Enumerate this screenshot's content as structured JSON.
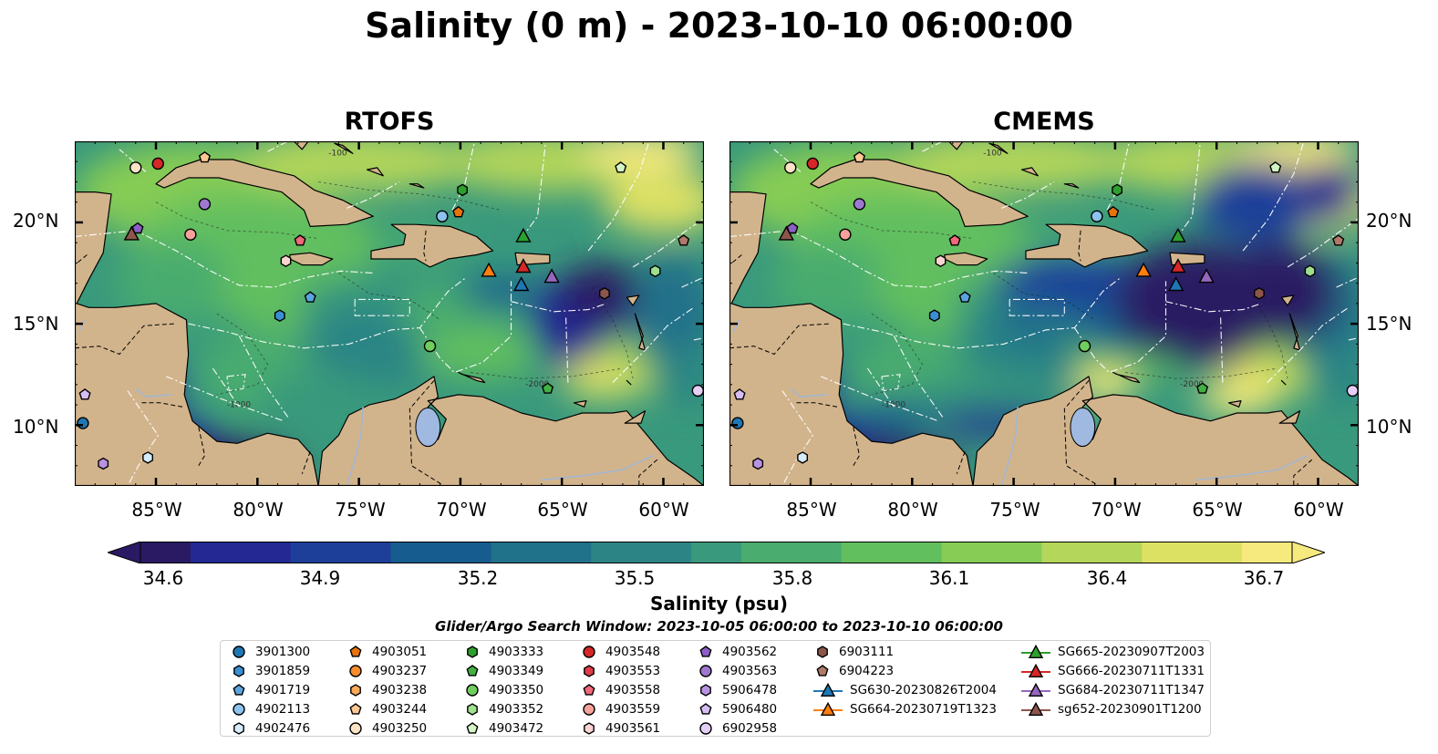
{
  "figure": {
    "suptitle": "Salinity (0 m) - 2023-10-10 06:00:00",
    "panels": [
      {
        "title": "RTOFS"
      },
      {
        "title": "CMEMS"
      }
    ],
    "lat_labels": [
      "20°N",
      "15°N",
      "10°N"
    ],
    "lon_labels": [
      "85°W",
      "80°W",
      "75°W",
      "70°W",
      "65°W",
      "60°W"
    ],
    "contour_labels": [
      "-100",
      "-1000",
      "-2000"
    ]
  },
  "map_extent": {
    "lon": [
      -89,
      -58
    ],
    "lat": [
      7,
      24
    ]
  },
  "colorbar": {
    "label": "Salinity (psu)",
    "ticks": [
      "34.6",
      "34.9",
      "35.2",
      "35.5",
      "35.8",
      "36.1",
      "36.4",
      "36.7"
    ],
    "range": [
      34.6,
      36.7
    ],
    "colormap": "haline",
    "colors": [
      "#2a1a63",
      "#232892",
      "#1d3f99",
      "#175c8f",
      "#20718a",
      "#2c8584",
      "#39997c",
      "#4aac6e",
      "#62bf5e",
      "#86cc55",
      "#b4d65a",
      "#dde163",
      "#f6ea7f"
    ]
  },
  "search_window": "Glider/Argo Search Window: 2023-10-05 06:00:00 to 2023-10-10 06:00:00",
  "colors": {
    "land": "#d2b48c",
    "lakes": "#9fb9e0",
    "rivers": "#a3b7d1",
    "eez": "#ffffff"
  },
  "legend": {
    "columns": [
      [
        {
          "label": "3901300",
          "marker": "circle",
          "color": "#1f77b4"
        },
        {
          "label": "3901859",
          "marker": "hexagon",
          "color": "#3a8fd0"
        },
        {
          "label": "4901719",
          "marker": "pentagon",
          "color": "#5aa5e0"
        },
        {
          "label": "4902113",
          "marker": "circle",
          "color": "#8cc3ee"
        },
        {
          "label": "4902476",
          "marker": "hexagon",
          "color": "#d6ecfb"
        }
      ],
      [
        {
          "label": "4903051",
          "marker": "pentagon",
          "color": "#e8720c"
        },
        {
          "label": "4903237",
          "marker": "circle",
          "color": "#f98d2c"
        },
        {
          "label": "4903238",
          "marker": "hexagon",
          "color": "#fbaa5a"
        },
        {
          "label": "4903244",
          "marker": "pentagon",
          "color": "#fdc893"
        },
        {
          "label": "4903250",
          "marker": "circle",
          "color": "#fde3c5"
        }
      ],
      [
        {
          "label": "4903333",
          "marker": "hexagon",
          "color": "#2ca02c"
        },
        {
          "label": "4903349",
          "marker": "pentagon",
          "color": "#43b043"
        },
        {
          "label": "4903350",
          "marker": "circle",
          "color": "#6fce5e"
        },
        {
          "label": "4903352",
          "marker": "hexagon",
          "color": "#9ee08e"
        },
        {
          "label": "4903472",
          "marker": "pentagon",
          "color": "#d3f5c4"
        }
      ],
      [
        {
          "label": "4903548",
          "marker": "circle",
          "color": "#d62728"
        },
        {
          "label": "4903553",
          "marker": "hexagon",
          "color": "#e03b4a"
        },
        {
          "label": "4903558",
          "marker": "pentagon",
          "color": "#f0687a"
        },
        {
          "label": "4903559",
          "marker": "circle",
          "color": "#f7a19a"
        },
        {
          "label": "4903561",
          "marker": "hexagon",
          "color": "#fcd3d0"
        }
      ],
      [
        {
          "label": "4903562",
          "marker": "pentagon",
          "color": "#8c5fc7"
        },
        {
          "label": "4903563",
          "marker": "circle",
          "color": "#9e78d0"
        },
        {
          "label": "5906478",
          "marker": "hexagon",
          "color": "#b893e2"
        },
        {
          "label": "5906480",
          "marker": "pentagon",
          "color": "#d6bdf2"
        },
        {
          "label": "6902958",
          "marker": "circle",
          "color": "#e5cff7"
        }
      ],
      [
        {
          "label": "6903111",
          "marker": "hexagon",
          "color": "#8c564b"
        },
        {
          "label": "6904223",
          "marker": "pentagon",
          "color": "#b07a6a"
        },
        {
          "label": "SG630-20230826T2004",
          "marker": "triangle",
          "color": "#1f77b4"
        },
        {
          "label": "SG664-20230719T1323",
          "marker": "triangle",
          "color": "#ff7f0e"
        }
      ],
      [
        {
          "label": "SG665-20230907T2003",
          "marker": "triangle",
          "color": "#2ca02c"
        },
        {
          "label": "SG666-20230711T1331",
          "marker": "triangle",
          "color": "#d62728"
        },
        {
          "label": "SG684-20230711T1347",
          "marker": "triangle",
          "color": "#9467bd"
        },
        {
          "label": "sg652-20230901T1200",
          "marker": "triangle",
          "color": "#8c564b"
        }
      ]
    ]
  },
  "floats": [
    {
      "id": "3901300",
      "lon": -88.6,
      "lat": 10.1
    },
    {
      "id": "3901859",
      "lon": -78.9,
      "lat": 15.4
    },
    {
      "id": "4901719",
      "lon": -77.4,
      "lat": 16.3
    },
    {
      "id": "4902113",
      "lon": -70.9,
      "lat": 20.3
    },
    {
      "id": "4902476",
      "lon": -85.4,
      "lat": 8.4
    },
    {
      "id": "4903051",
      "lon": -70.1,
      "lat": 20.5
    },
    {
      "id": "4903250",
      "lon": -86.0,
      "lat": 22.7
    },
    {
      "id": "4903244",
      "lon": -82.6,
      "lat": 23.2
    },
    {
      "id": "4903333",
      "lon": -69.9,
      "lat": 21.6
    },
    {
      "id": "4903350",
      "lon": -71.5,
      "lat": 13.9
    },
    {
      "id": "4903352",
      "lon": -60.4,
      "lat": 17.6
    },
    {
      "id": "4903349",
      "lon": -65.7,
      "lat": 11.8
    },
    {
      "id": "4903472",
      "lon": -62.1,
      "lat": 22.7
    },
    {
      "id": "4903548",
      "lon": -84.9,
      "lat": 22.9
    },
    {
      "id": "4903558",
      "lon": -77.9,
      "lat": 19.1
    },
    {
      "id": "4903559",
      "lon": -83.3,
      "lat": 19.4
    },
    {
      "id": "4903561",
      "lon": -78.6,
      "lat": 18.1
    },
    {
      "id": "4903562",
      "lon": -85.9,
      "lat": 19.7
    },
    {
      "id": "4903563",
      "lon": -82.6,
      "lat": 20.9
    },
    {
      "id": "5906478",
      "lon": -87.6,
      "lat": 8.1
    },
    {
      "id": "5906480",
      "lon": -88.5,
      "lat": 11.5
    },
    {
      "id": "6902958",
      "lon": -58.3,
      "lat": 11.7
    },
    {
      "id": "6903111",
      "lon": -62.9,
      "lat": 16.5
    },
    {
      "id": "6904223",
      "lon": -59.0,
      "lat": 19.1
    }
  ],
  "gliders": [
    {
      "id": "SG630-20230826T2004",
      "lon": -67.0,
      "lat": 16.9
    },
    {
      "id": "SG664-20230719T1323",
      "lon": -68.6,
      "lat": 17.6
    },
    {
      "id": "SG665-20230907T2003",
      "lon": -66.9,
      "lat": 19.3
    },
    {
      "id": "SG666-20230711T1331",
      "lon": -66.9,
      "lat": 17.8
    },
    {
      "id": "SG684-20230711T1347",
      "lon": -65.5,
      "lat": 17.3
    },
    {
      "id": "sg652-20230901T1200",
      "lon": -86.2,
      "lat": 19.4
    }
  ]
}
